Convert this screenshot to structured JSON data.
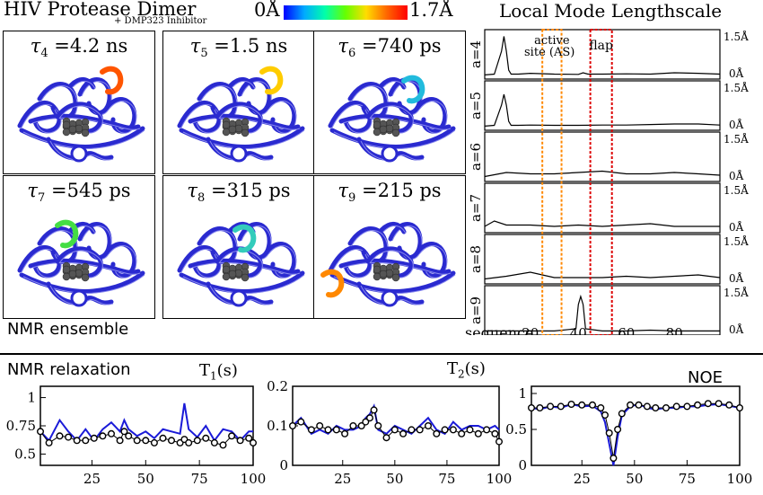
{
  "header": {
    "title": "HIV Protease Dimer",
    "subtitle": "+ DMP323 Inhibitor",
    "scale_min": "0Å",
    "scale_max": "1.7Å",
    "scale_colors": [
      "#0000ff",
      "#00aaff",
      "#00ffaa",
      "#66ff00",
      "#ffdd00",
      "#ff6600",
      "#ff0000"
    ]
  },
  "structures": [
    {
      "tau": "τ",
      "sub": "4",
      "value": "=4.2 ns",
      "highlight": "#ff5500"
    },
    {
      "tau": "τ",
      "sub": "5",
      "value": "=1.5 ns",
      "highlight": "#ffcc00"
    },
    {
      "tau": "τ",
      "sub": "6",
      "value": "=740 ps",
      "highlight": "#22bbdd"
    },
    {
      "tau": "τ",
      "sub": "7",
      "value": "=545 ps",
      "highlight": "#44dd44"
    },
    {
      "tau": "τ",
      "sub": "8",
      "value": "=315 ps",
      "highlight": "#33ccbb"
    },
    {
      "tau": "τ",
      "sub": "9",
      "value": "=215 ps",
      "highlight": "#ff8800"
    }
  ],
  "ensemble_label": "NMR ensemble",
  "local_mode": {
    "title": "Local Mode Lengthscale",
    "active_site_label": [
      "active",
      "site (AS)"
    ],
    "flap_label": "flap",
    "ytop": "1.5Å",
    "ybottom": "0Å",
    "xlabel": "sequence",
    "xticks": [
      "20",
      "40",
      "60",
      "80"
    ],
    "rows": [
      "a=4",
      "a=5",
      "a=6",
      "a=7",
      "a=8",
      "a=9"
    ],
    "active_site_color": "#ff8800",
    "flap_color": "#dd0000"
  },
  "relaxation": {
    "section_label": "NMR relaxation",
    "t1_label": "T",
    "t1_sub": "1",
    "t1_unit": "(s)",
    "t2_label": "T",
    "t2_sub": "2",
    "t2_unit": "(s)",
    "noe_label": "NOE"
  },
  "chart_data": [
    {
      "type": "line",
      "title": "Local Mode Lengthscale",
      "xlabel": "sequence",
      "ylim": [
        0,
        1.5
      ],
      "xlim": [
        1,
        99
      ],
      "series": [
        {
          "name": "a=4",
          "x": [
            1,
            5,
            8,
            9,
            10,
            11,
            12,
            15,
            20,
            30,
            40,
            42,
            44,
            50,
            60,
            70,
            80,
            90,
            99
          ],
          "values": [
            0.02,
            0.05,
            0.9,
            1.45,
            0.9,
            0.2,
            0.05,
            0.05,
            0.08,
            0.05,
            0.04,
            0.1,
            0.05,
            0.05,
            0.06,
            0.05,
            0.1,
            0.08,
            0.05
          ]
        },
        {
          "name": "a=5",
          "x": [
            1,
            5,
            8,
            9,
            10,
            11,
            12,
            15,
            20,
            30,
            40,
            50,
            60,
            70,
            80,
            90,
            99
          ],
          "values": [
            0.02,
            0.05,
            0.8,
            1.2,
            0.8,
            0.2,
            0.05,
            0.05,
            0.06,
            0.05,
            0.05,
            0.06,
            0.06,
            0.08,
            0.1,
            0.1,
            0.06
          ]
        },
        {
          "name": "a=6",
          "x": [
            1,
            10,
            20,
            30,
            40,
            50,
            60,
            70,
            80,
            90,
            99
          ],
          "values": [
            0.05,
            0.2,
            0.15,
            0.15,
            0.2,
            0.25,
            0.15,
            0.15,
            0.2,
            0.15,
            0.1
          ]
        },
        {
          "name": "a=7",
          "x": [
            1,
            5,
            10,
            20,
            30,
            40,
            50,
            60,
            70,
            80,
            90,
            99
          ],
          "values": [
            0.1,
            0.3,
            0.15,
            0.15,
            0.1,
            0.15,
            0.1,
            0.15,
            0.2,
            0.1,
            0.1,
            0.1
          ]
        },
        {
          "name": "a=8",
          "x": [
            1,
            10,
            20,
            30,
            40,
            50,
            60,
            70,
            80,
            90,
            99
          ],
          "values": [
            0.05,
            0.15,
            0.3,
            0.1,
            0.1,
            0.1,
            0.15,
            0.1,
            0.15,
            0.2,
            0.1
          ]
        },
        {
          "name": "a=9",
          "x": [
            1,
            10,
            20,
            30,
            39,
            40,
            41,
            42,
            43,
            50,
            60,
            70,
            80,
            90,
            99
          ],
          "values": [
            0.02,
            0.02,
            0.02,
            0.02,
            0.1,
            1.0,
            1.3,
            1.0,
            0.1,
            0.02,
            0.02,
            0.05,
            0.02,
            0.02,
            0.02
          ]
        }
      ]
    },
    {
      "type": "line",
      "title": "T1(s)",
      "xlim": [
        1,
        100
      ],
      "ylim": [
        0.4,
        1.1
      ],
      "yticks": [
        0.5,
        0.75,
        1
      ],
      "xticks": [
        25,
        50,
        75,
        100
      ],
      "x": [
        1,
        5,
        10,
        14,
        18,
        22,
        26,
        30,
        34,
        38,
        40,
        42,
        46,
        50,
        54,
        58,
        62,
        66,
        68,
        70,
        74,
        78,
        82,
        86,
        90,
        94,
        98,
        100
      ],
      "series": [
        {
          "values": [
            0.7,
            0.62,
            0.8,
            0.7,
            0.62,
            0.72,
            0.62,
            0.72,
            0.78,
            0.7,
            0.8,
            0.72,
            0.66,
            0.7,
            0.64,
            0.72,
            0.7,
            0.68,
            0.95,
            0.72,
            0.65,
            0.75,
            0.62,
            0.72,
            0.7,
            0.62,
            0.7,
            0.7
          ]
        },
        {
          "values": [
            0.7,
            0.6,
            0.66,
            0.65,
            0.62,
            0.62,
            0.64,
            0.66,
            0.68,
            0.62,
            0.7,
            0.66,
            0.62,
            0.62,
            0.6,
            0.64,
            0.62,
            0.6,
            0.63,
            0.6,
            0.62,
            0.64,
            0.6,
            0.58,
            0.66,
            0.62,
            0.64,
            0.6
          ]
        }
      ]
    },
    {
      "type": "line",
      "title": "T2(s)",
      "xlim": [
        1,
        100
      ],
      "ylim": [
        0,
        0.2
      ],
      "yticks": [
        0,
        0.1,
        0.2
      ],
      "xticks": [
        25,
        50,
        75,
        100
      ],
      "x": [
        1,
        5,
        10,
        14,
        18,
        22,
        26,
        30,
        34,
        36,
        38,
        40,
        42,
        46,
        50,
        54,
        58,
        62,
        66,
        70,
        74,
        78,
        82,
        86,
        90,
        94,
        98,
        100
      ],
      "series": [
        {
          "values": [
            0.1,
            0.12,
            0.08,
            0.09,
            0.08,
            0.1,
            0.09,
            0.09,
            0.1,
            0.12,
            0.13,
            0.15,
            0.09,
            0.08,
            0.1,
            0.09,
            0.08,
            0.1,
            0.12,
            0.09,
            0.08,
            0.11,
            0.09,
            0.1,
            0.1,
            0.09,
            0.1,
            0.09
          ]
        },
        {
          "values": [
            0.1,
            0.11,
            0.09,
            0.1,
            0.09,
            0.09,
            0.08,
            0.1,
            0.1,
            0.11,
            0.12,
            0.14,
            0.1,
            0.07,
            0.09,
            0.08,
            0.09,
            0.09,
            0.1,
            0.08,
            0.09,
            0.09,
            0.08,
            0.09,
            0.08,
            0.09,
            0.08,
            0.06
          ]
        }
      ]
    },
    {
      "type": "line",
      "title": "NOE",
      "xlim": [
        1,
        100
      ],
      "ylim": [
        0,
        1.1
      ],
      "yticks": [
        0,
        0.5,
        1
      ],
      "xticks": [
        25,
        50,
        75,
        100
      ],
      "x": [
        1,
        5,
        10,
        15,
        20,
        25,
        30,
        34,
        36,
        38,
        40,
        42,
        44,
        48,
        52,
        56,
        60,
        65,
        70,
        75,
        80,
        85,
        90,
        95,
        100
      ],
      "series": [
        {
          "values": [
            0.8,
            0.78,
            0.82,
            0.8,
            0.85,
            0.82,
            0.83,
            0.75,
            0.6,
            0.3,
            0.0,
            0.4,
            0.7,
            0.82,
            0.85,
            0.8,
            0.78,
            0.8,
            0.8,
            0.82,
            0.82,
            0.84,
            0.85,
            0.83,
            0.8
          ]
        },
        {
          "values": [
            0.8,
            0.8,
            0.82,
            0.82,
            0.85,
            0.84,
            0.84,
            0.8,
            0.7,
            0.45,
            0.1,
            0.5,
            0.72,
            0.84,
            0.84,
            0.82,
            0.8,
            0.8,
            0.82,
            0.82,
            0.84,
            0.86,
            0.86,
            0.84,
            0.8
          ]
        }
      ]
    }
  ]
}
